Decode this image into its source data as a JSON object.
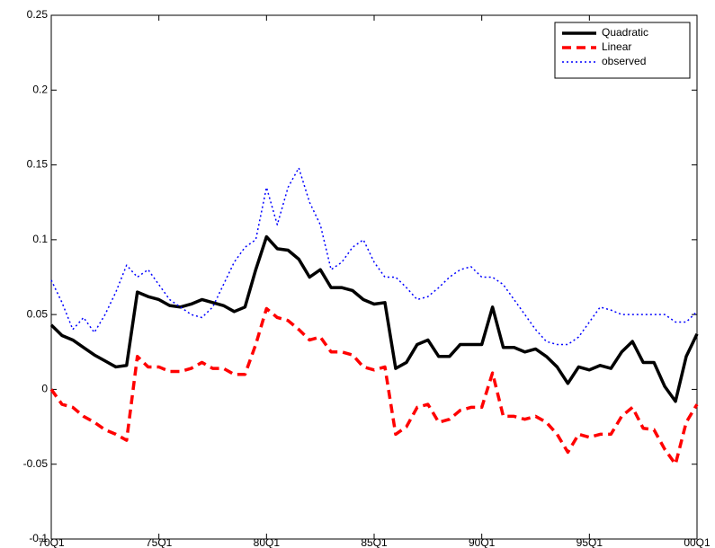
{
  "chart_data": {
    "type": "line",
    "categories": [
      "70Q1",
      null,
      null,
      null,
      null,
      null,
      null,
      null,
      null,
      null,
      "75Q1",
      null,
      null,
      null,
      null,
      null,
      null,
      null,
      null,
      null,
      "80Q1",
      null,
      null,
      null,
      null,
      null,
      null,
      null,
      null,
      null,
      "85Q1",
      null,
      null,
      null,
      null,
      null,
      null,
      null,
      null,
      null,
      "90Q1",
      null,
      null,
      null,
      null,
      null,
      null,
      null,
      null,
      null,
      "95Q1",
      null,
      null,
      null,
      null,
      null,
      null,
      null,
      null,
      null,
      "00Q1"
    ],
    "series": [
      {
        "name": "Quadratic",
        "color": "#000000",
        "linestyle": "solid",
        "values": [
          0.043,
          0.036,
          0.033,
          0.028,
          0.023,
          0.019,
          0.015,
          0.016,
          0.065,
          0.062,
          0.06,
          0.056,
          0.055,
          0.057,
          0.06,
          0.058,
          0.056,
          0.052,
          0.055,
          0.08,
          0.102,
          0.094,
          0.093,
          0.087,
          0.075,
          0.08,
          0.068,
          0.068,
          0.066,
          0.06,
          0.057,
          0.058,
          0.014,
          0.018,
          0.03,
          0.033,
          0.022,
          0.022,
          0.03,
          0.03,
          0.03,
          0.055,
          0.028,
          0.028,
          0.025,
          0.027,
          0.022,
          0.015,
          0.004,
          0.015,
          0.013,
          0.016,
          0.014,
          0.025,
          0.032,
          0.018,
          0.018,
          0.002,
          -0.008,
          0.022,
          0.037
        ]
      },
      {
        "name": "Linear",
        "color": "#ff0000",
        "linestyle": "dashed",
        "values": [
          0.0,
          -0.01,
          -0.012,
          -0.018,
          -0.022,
          -0.027,
          -0.03,
          -0.034,
          0.022,
          0.015,
          0.015,
          0.012,
          0.012,
          0.014,
          0.018,
          0.014,
          0.014,
          0.01,
          0.01,
          0.03,
          0.054,
          0.048,
          0.046,
          0.04,
          0.033,
          0.035,
          0.025,
          0.025,
          0.023,
          0.015,
          0.013,
          0.015,
          -0.03,
          -0.025,
          -0.012,
          -0.01,
          -0.022,
          -0.02,
          -0.014,
          -0.012,
          -0.012,
          0.011,
          -0.018,
          -0.018,
          -0.02,
          -0.018,
          -0.022,
          -0.03,
          -0.042,
          -0.03,
          -0.032,
          -0.03,
          -0.03,
          -0.018,
          -0.012,
          -0.026,
          -0.027,
          -0.04,
          -0.05,
          -0.022,
          -0.01
        ]
      },
      {
        "name": "observed",
        "color": "#0000ff",
        "linestyle": "dotted",
        "values": [
          0.073,
          0.058,
          0.04,
          0.048,
          0.038,
          0.05,
          0.065,
          0.083,
          0.075,
          0.08,
          0.07,
          0.06,
          0.055,
          0.05,
          0.048,
          0.055,
          0.07,
          0.085,
          0.095,
          0.1,
          0.135,
          0.11,
          0.135,
          0.148,
          0.125,
          0.11,
          0.08,
          0.085,
          0.095,
          0.1,
          0.085,
          0.075,
          0.075,
          0.068,
          0.06,
          0.062,
          0.068,
          0.075,
          0.08,
          0.082,
          0.075,
          0.075,
          0.07,
          0.06,
          0.05,
          0.04,
          0.032,
          0.03,
          0.03,
          0.035,
          0.045,
          0.055,
          0.053,
          0.05,
          0.05,
          0.05,
          0.05,
          0.05,
          0.045,
          0.045,
          0.052
        ]
      }
    ],
    "ylim": [
      -0.1,
      0.25
    ],
    "yticks": [
      -0.1,
      -0.05,
      0,
      0.05,
      0.1,
      0.15,
      0.2,
      0.25
    ],
    "grid": false,
    "legend": "top-right"
  }
}
